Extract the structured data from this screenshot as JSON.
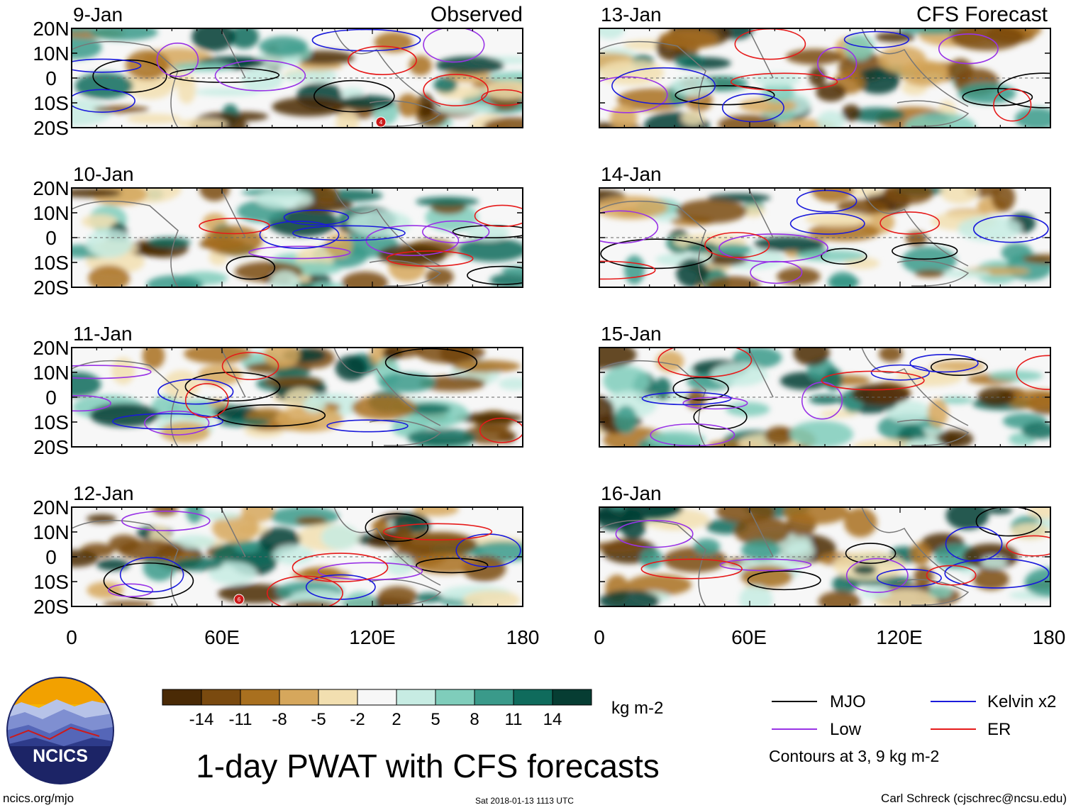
{
  "header": {
    "observed_label": "Observed",
    "forecast_label": "CFS Forecast"
  },
  "panels": [
    {
      "date": "9-Jan",
      "column": "observed",
      "storm": "4"
    },
    {
      "date": "10-Jan",
      "column": "observed",
      "storm": ""
    },
    {
      "date": "11-Jan",
      "column": "observed",
      "storm": ""
    },
    {
      "date": "12-Jan",
      "column": "observed",
      "storm": "6"
    },
    {
      "date": "13-Jan",
      "column": "forecast",
      "storm": ""
    },
    {
      "date": "14-Jan",
      "column": "forecast",
      "storm": ""
    },
    {
      "date": "15-Jan",
      "column": "forecast",
      "storm": ""
    },
    {
      "date": "16-Jan",
      "column": "forecast",
      "storm": ""
    }
  ],
  "axes": {
    "y_ticks": [
      "20N",
      "10N",
      "0",
      "10S",
      "20S"
    ],
    "x_ticks": [
      "0",
      "60E",
      "120E",
      "180"
    ]
  },
  "colorbar": {
    "colors": [
      "#4a2a05",
      "#7a4a0f",
      "#a9701f",
      "#d6a75c",
      "#f2dfb0",
      "#f7f7f7",
      "#c7ece3",
      "#7fcdbb",
      "#3a9a8a",
      "#0f6b5c",
      "#063d33"
    ],
    "tick_labels": [
      "-14",
      "-11",
      "-8",
      "-5",
      "-2",
      "2",
      "5",
      "8",
      "11",
      "14"
    ],
    "units": "kg m-2"
  },
  "legend": {
    "items": [
      {
        "label": "MJO",
        "color": "#000000"
      },
      {
        "label": "Kelvin x2",
        "color": "#1a1adb"
      },
      {
        "label": "Low",
        "color": "#9933e6"
      },
      {
        "label": "ER",
        "color": "#e61a1a"
      }
    ],
    "note": "Contours at 3, 9 kg m-2"
  },
  "title": "1-day PWAT with CFS forecasts",
  "logo": {
    "text": "NCICS"
  },
  "footer": {
    "left": "ncics.org/mjo",
    "center": "Sat 2018-01-13 1113 UTC",
    "right": "Carl Schreck (cjschrec@ncsu.edu)"
  }
}
